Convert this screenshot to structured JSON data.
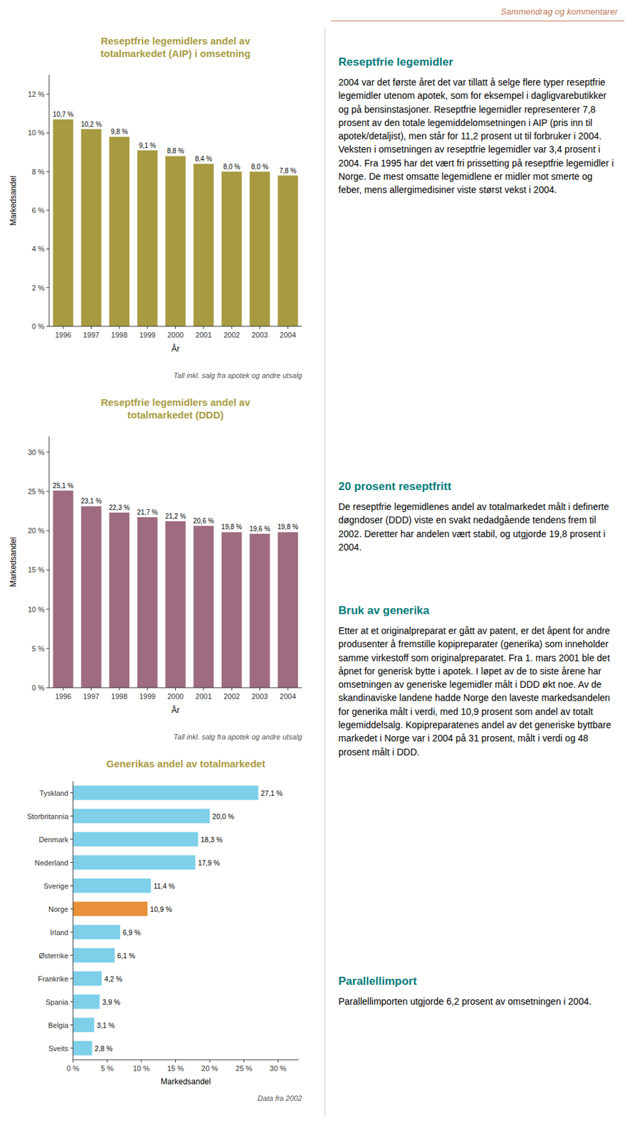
{
  "page_header": "Sammendrag og kommentarer",
  "text_sections": [
    {
      "heading": "Reseptfrie legemidler",
      "body": "2004 var det første året det var tillatt å selge flere typer reseptfrie legemidler utenom apotek, som for eksempel i dagligvarebutikker og på bensinstasjoner.  Reseptfrie legemidler representerer 7,8 prosent av den totale legemiddelomsetningen i AIP (pris inn til apotek/detaljist), men står for 11,2 prosent ut til forbruker i 2004. Veksten i omsetningen av reseptfrie legemidler var 3,4 prosent i 2004. Fra 1995 har det vært fri prissetting på reseptfrie legemidler i Norge. De mest omsatte legemidlene er midler mot smerte og feber, mens allergimedisiner viste størst vekst i 2004."
    },
    {
      "heading": "20 prosent reseptfritt",
      "body": "De reseptfrie legemidlenes andel av totalmarkedet målt i definerte døgndoser (DDD) viste en svakt nedadgående tendens frem til 2002. Deretter har andelen vært stabil, og utgjorde 19,8 prosent i 2004."
    },
    {
      "heading": "Bruk av generika",
      "body": "Etter at et originalpreparat er gått av patent, er det åpent for andre produsenter å fremstille kopipreparater (generika) som inneholder samme virkestoff som originalpreparatet. Fra 1. mars 2001 ble det åpnet for generisk bytte i apotek.   I løpet av de to siste årene har omsetningen av generiske legemidler målt i DDD økt noe. Av de skandinaviske landene hadde Norge den laveste markedsandelen for generika målt i verdi, med 10,9 prosent som andel av totalt legemiddelsalg. Kopipreparatenes andel av det generiske byttbare markedet i Norge var i 2004 på 31 prosent, målt i verdi og 48 prosent målt i DDD."
    },
    {
      "heading": "Parallellimport",
      "body": "Parallellimporten utgjorde 6,2 prosent av omsetningen i 2004."
    }
  ],
  "chart_data": [
    {
      "type": "bar",
      "title": "Reseptfrie legemidlers andel av\ntotalmarkedet (AIP) i omsetning",
      "categories": [
        "1996",
        "1997",
        "1998",
        "1999",
        "2000",
        "2001",
        "2002",
        "2003",
        "2004"
      ],
      "values": [
        10.7,
        10.2,
        9.8,
        9.1,
        8.8,
        8.4,
        8.0,
        8.0,
        7.8
      ],
      "value_labels": [
        "10,7 %",
        "10,2 %",
        "9,8 %",
        "9,1 %",
        "8,8 %",
        "8,4 %",
        "8,0 %",
        "8,0 %",
        "7,8 %"
      ],
      "data_labels": true,
      "color": "#A89A40",
      "xlabel": "År",
      "ylabel": "Markedsandel",
      "ylim": [
        0,
        13
      ],
      "yticks": [
        {
          "value": 0,
          "label": "0 %"
        },
        {
          "value": 2,
          "label": "2 %"
        },
        {
          "value": 4,
          "label": "4 %"
        },
        {
          "value": 6,
          "label": "6 %"
        },
        {
          "value": 8,
          "label": "8 %"
        },
        {
          "value": 10,
          "label": "10 %"
        },
        {
          "value": 12,
          "label": "12 %"
        }
      ],
      "annotations": [
        "Tall inkl. salg fra apotek og andre utsalg"
      ]
    },
    {
      "type": "bar",
      "title": "Reseptfrie legemidlers andel av\ntotalmarkedet (DDD)",
      "categories": [
        "1996",
        "1997",
        "1998",
        "1999",
        "2000",
        "2001",
        "2002",
        "2003",
        "2004"
      ],
      "values": [
        25.1,
        23.1,
        22.3,
        21.7,
        21.2,
        20.6,
        19.8,
        19.6,
        19.8
      ],
      "value_labels": [
        "25,1 %",
        "23,1 %",
        "22,3 %",
        "21,7 %",
        "21,2 %",
        "20,6 %",
        "19,8 %",
        "19,6 %",
        "19,8 %"
      ],
      "data_labels": true,
      "color": "#9E6B80",
      "xlabel": "År",
      "ylabel": "Markedsandel",
      "ylim": [
        0,
        32
      ],
      "yticks": [
        {
          "value": 0,
          "label": "0 %"
        },
        {
          "value": 5,
          "label": "5 %"
        },
        {
          "value": 10,
          "label": "10 %"
        },
        {
          "value": 15,
          "label": "15 %"
        },
        {
          "value": 20,
          "label": "20 %"
        },
        {
          "value": 25,
          "label": "25 %"
        },
        {
          "value": 30,
          "label": "30 %"
        }
      ],
      "annotations": [
        "Tall inkl. salg fra apotek og andre utsalg"
      ]
    },
    {
      "type": "bar",
      "orientation": "horizontal",
      "title": "Generikas andel av totalmarkedet",
      "categories": [
        "Sveits",
        "Belgia",
        "Spania",
        "Frankrike",
        "Østerrike",
        "Irland",
        "Norge",
        "Sverige",
        "Nederland",
        "Denmark",
        "Storbritannia",
        "Tyskland"
      ],
      "values": [
        2.8,
        3.1,
        3.9,
        4.2,
        6.1,
        6.9,
        10.9,
        11.4,
        17.9,
        18.3,
        20.0,
        27.1
      ],
      "value_labels": [
        "2,8 %",
        "3,1 %",
        "3,9 %",
        "4,2 %",
        "6,1 %",
        "6,9 %",
        "10,9 %",
        "11,4 %",
        "17,9 %",
        "18,3 %",
        "20,0 %",
        "27,1 %"
      ],
      "data_labels": true,
      "colors": [
        "#7DCFEA",
        "#7DCFEA",
        "#7DCFEA",
        "#7DCFEA",
        "#7DCFEA",
        "#7DCFEA",
        "#E8903A",
        "#7DCFEA",
        "#7DCFEA",
        "#7DCFEA",
        "#7DCFEA",
        "#7DCFEA"
      ],
      "xlabel": "Markedsandel",
      "xlim": [
        0,
        33
      ],
      "xticks": [
        {
          "value": 0,
          "label": "0 %"
        },
        {
          "value": 5,
          "label": "5 %"
        },
        {
          "value": 10,
          "label": "10 %"
        },
        {
          "value": 15,
          "label": "15 %"
        },
        {
          "value": 20,
          "label": "20 %"
        },
        {
          "value": 25,
          "label": "25 %"
        },
        {
          "value": 30,
          "label": "30 %"
        }
      ],
      "annotations": [
        "Data fra 2002"
      ]
    }
  ]
}
